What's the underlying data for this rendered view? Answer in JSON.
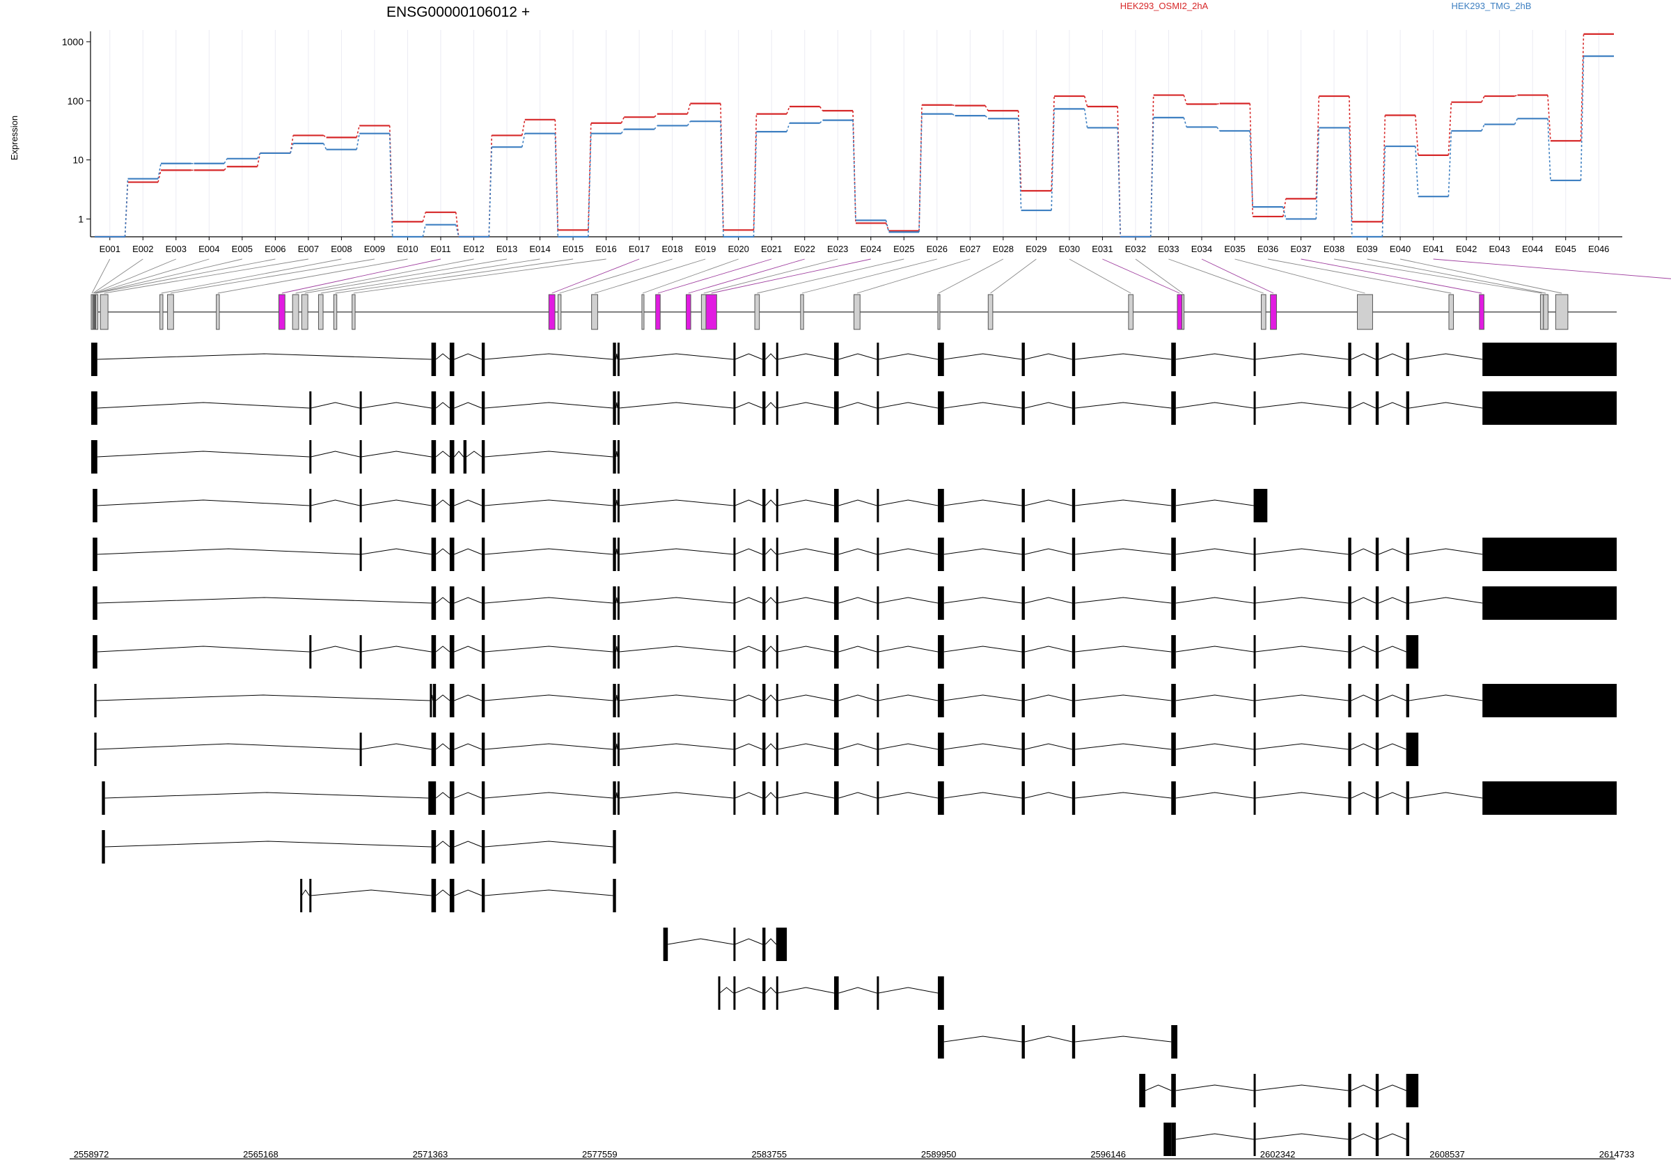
{
  "chart_data": {
    "type": "line",
    "title": "ENSG00000106012 +",
    "ylabel": "Expression",
    "yscale": "log",
    "ylim": [
      0.5,
      1500
    ],
    "yticks": [
      1,
      10,
      100,
      1000
    ],
    "grid": true,
    "legend_placement": "top-right",
    "categories": [
      "E001",
      "E002",
      "E003",
      "E004",
      "E005",
      "E006",
      "E007",
      "E008",
      "E009",
      "E010",
      "E011",
      "E012",
      "E013",
      "E014",
      "E015",
      "E016",
      "E017",
      "E018",
      "E019",
      "E020",
      "E021",
      "E022",
      "E023",
      "E024",
      "E025",
      "E026",
      "E027",
      "E028",
      "E029",
      "E030",
      "E031",
      "E032",
      "E033",
      "E034",
      "E035",
      "E036",
      "E037",
      "E038",
      "E039",
      "E040",
      "E041",
      "E042",
      "E043",
      "E044",
      "E045",
      "E046"
    ],
    "series": [
      {
        "name": "HEK293_OSMI2_2hA",
        "color": "#d62728",
        "values": [
          0.5,
          4.2,
          6.7,
          6.7,
          7.7,
          13,
          26,
          24,
          38,
          0.9,
          1.3,
          0.5,
          26,
          48,
          0.65,
          42,
          53,
          60,
          90,
          0.65,
          60,
          80,
          68,
          0.85,
          0.63,
          85,
          83,
          68,
          3,
          120,
          80,
          0.5,
          125,
          88,
          90,
          1.1,
          2.2,
          120,
          0.9,
          57,
          12,
          95,
          120,
          125,
          21,
          1350
        ]
      },
      {
        "name": "HEK293_TMG_2hB",
        "color": "#3d7fc1",
        "values": [
          0.5,
          4.8,
          8.7,
          8.7,
          10.5,
          13,
          19,
          15,
          28,
          0.5,
          0.8,
          0.5,
          16.5,
          28,
          0.5,
          28,
          33,
          38,
          45,
          0.5,
          30,
          42,
          47,
          0.95,
          0.6,
          60,
          56,
          50,
          1.4,
          73,
          35,
          0.5,
          52,
          36,
          31,
          1.6,
          1,
          35,
          0.5,
          17,
          2.4,
          31,
          40,
          50,
          4.5,
          570
        ]
      }
    ],
    "exon_highlight": [
      "E011",
      "E017",
      "E021",
      "E022",
      "E024",
      "E031",
      "E034",
      "E037",
      "E041",
      "E042",
      "E043",
      "E044"
    ],
    "genomic_ticks": [
      "2558972",
      "2565168",
      "2571363",
      "2577559",
      "2583755",
      "2589950",
      "2596146",
      "2602342",
      "2608537",
      "2614733"
    ],
    "gene_model_exons": [
      [
        "E001",
        0,
        0.1
      ],
      [
        "E002",
        0.1,
        0.15
      ],
      [
        "E003",
        0.15,
        0.2
      ],
      [
        "E004",
        0.2,
        0.25
      ],
      [
        "E005",
        0.25,
        0.3
      ],
      [
        "E006",
        0.3,
        0.35
      ],
      [
        "E007",
        0.6,
        1.1
      ],
      [
        "E008",
        4.5,
        4.7
      ],
      [
        "E009",
        5,
        5.4
      ],
      [
        "E010",
        8.2,
        8.4
      ],
      [
        "E011",
        12.3,
        12.7
      ],
      [
        "E012",
        13.2,
        13.6
      ],
      [
        "E013",
        13.8,
        14.2
      ],
      [
        "E014",
        14.9,
        15.2
      ],
      [
        "E015",
        15.9,
        16.1
      ],
      [
        "E016",
        17.1,
        17.3
      ],
      [
        "E017",
        30,
        30.4
      ],
      [
        "E018",
        30.6,
        30.8
      ],
      [
        "E019",
        32.8,
        33.2
      ],
      [
        "E020",
        36.1,
        36.2
      ],
      [
        "E021",
        37.0,
        37.3
      ],
      [
        "E022",
        39.0,
        39.3
      ],
      [
        "E023",
        40.0,
        40.3
      ],
      [
        "E024",
        40.3,
        41.0
      ],
      [
        "E025",
        43.5,
        43.8
      ],
      [
        "E026",
        46.5,
        46.7
      ],
      [
        "E027",
        50.0,
        50.4
      ],
      [
        "E028",
        55.5,
        55.6
      ],
      [
        "E029",
        58.8,
        59.1
      ],
      [
        "E030",
        68.0,
        68.3
      ],
      [
        "E031",
        71.2,
        71.5
      ],
      [
        "E032",
        71.5,
        71.6
      ],
      [
        "E033",
        76.7,
        77.0
      ],
      [
        "E034",
        77.3,
        77.7
      ],
      [
        "E035",
        83,
        84
      ],
      [
        "E036",
        89,
        89.3
      ],
      [
        "E037",
        91,
        91.3
      ],
      [
        "E038",
        95,
        95.2
      ],
      [
        "E039",
        95.2,
        95.5
      ],
      [
        "E040",
        96,
        96.8
      ],
      [
        "E041",
        110,
        120
      ]
    ],
    "transcripts": [
      [
        [
          0,
          0.4
        ],
        [
          22.3,
          22.6
        ],
        [
          23.5,
          23.8
        ],
        [
          25.6,
          25.8
        ],
        [
          34.2,
          34.4
        ],
        [
          34.5,
          34.6
        ],
        [
          42.1,
          42.2
        ],
        [
          44,
          44.2
        ],
        [
          44.9,
          45
        ],
        [
          48.7,
          49
        ],
        [
          51.5,
          51.6
        ],
        [
          55.5,
          55.9
        ],
        [
          61,
          61.2
        ],
        [
          64.3,
          64.5
        ],
        [
          70.8,
          71.1
        ],
        [
          76.2,
          76.3
        ],
        [
          82.4,
          82.6
        ],
        [
          84.2,
          84.4
        ],
        [
          86.2,
          86.4
        ],
        [
          91.2,
          100
        ]
      ],
      [
        [
          0,
          0.4
        ],
        [
          14.3,
          14.4
        ],
        [
          17.6,
          17.7
        ],
        [
          22.3,
          22.6
        ],
        [
          23.5,
          23.8
        ],
        [
          25.6,
          25.8
        ],
        [
          34.2,
          34.4
        ],
        [
          34.5,
          34.6
        ],
        [
          42.1,
          42.2
        ],
        [
          44,
          44.2
        ],
        [
          44.9,
          45
        ],
        [
          48.7,
          49
        ],
        [
          51.5,
          51.6
        ],
        [
          55.5,
          55.9
        ],
        [
          61,
          61.2
        ],
        [
          64.3,
          64.5
        ],
        [
          70.8,
          71.1
        ],
        [
          76.2,
          76.3
        ],
        [
          82.4,
          82.6
        ],
        [
          84.2,
          84.4
        ],
        [
          86.2,
          86.4
        ],
        [
          91.2,
          100
        ]
      ],
      [
        [
          0,
          0.4
        ],
        [
          14.3,
          14.4
        ],
        [
          17.6,
          17.7
        ],
        [
          22.3,
          22.6
        ],
        [
          23.5,
          23.8
        ],
        [
          24.4,
          24.6
        ],
        [
          25.6,
          25.8
        ],
        [
          34.2,
          34.4
        ],
        [
          34.5,
          34.6
        ]
      ],
      [
        [
          0.1,
          0.4
        ],
        [
          14.3,
          14.4
        ],
        [
          17.6,
          17.7
        ],
        [
          22.3,
          22.6
        ],
        [
          23.5,
          23.8
        ],
        [
          25.6,
          25.8
        ],
        [
          34.2,
          34.4
        ],
        [
          34.5,
          34.6
        ],
        [
          42.1,
          42.2
        ],
        [
          44,
          44.2
        ],
        [
          44.9,
          45
        ],
        [
          48.7,
          49
        ],
        [
          51.5,
          51.6
        ],
        [
          55.5,
          55.9
        ],
        [
          61,
          61.2
        ],
        [
          64.3,
          64.5
        ],
        [
          70.8,
          71.1
        ],
        [
          76.2,
          77.1
        ]
      ],
      [
        [
          0.1,
          0.4
        ],
        [
          17.6,
          17.7
        ],
        [
          22.3,
          22.6
        ],
        [
          23.5,
          23.8
        ],
        [
          25.6,
          25.8
        ],
        [
          34.2,
          34.4
        ],
        [
          34.5,
          34.6
        ],
        [
          42.1,
          42.2
        ],
        [
          44,
          44.2
        ],
        [
          44.9,
          45
        ],
        [
          48.7,
          49
        ],
        [
          51.5,
          51.6
        ],
        [
          55.5,
          55.9
        ],
        [
          61,
          61.2
        ],
        [
          64.3,
          64.5
        ],
        [
          70.8,
          71.1
        ],
        [
          76.2,
          76.3
        ],
        [
          82.4,
          82.6
        ],
        [
          84.2,
          84.4
        ],
        [
          86.2,
          86.4
        ],
        [
          91.2,
          100
        ]
      ],
      [
        [
          0.1,
          0.4
        ],
        [
          22.3,
          22.6
        ],
        [
          23.5,
          23.8
        ],
        [
          25.6,
          25.8
        ],
        [
          34.2,
          34.4
        ],
        [
          34.5,
          34.6
        ],
        [
          42.1,
          42.2
        ],
        [
          44,
          44.2
        ],
        [
          44.9,
          45
        ],
        [
          48.7,
          49
        ],
        [
          51.5,
          51.6
        ],
        [
          55.5,
          55.9
        ],
        [
          61,
          61.2
        ],
        [
          64.3,
          64.5
        ],
        [
          70.8,
          71.1
        ],
        [
          76.2,
          76.3
        ],
        [
          82.4,
          82.6
        ],
        [
          84.2,
          84.4
        ],
        [
          86.2,
          86.4
        ],
        [
          91.2,
          100
        ]
      ],
      [
        [
          0.1,
          0.4
        ],
        [
          14.3,
          14.4
        ],
        [
          17.6,
          17.7
        ],
        [
          22.3,
          22.6
        ],
        [
          23.5,
          23.8
        ],
        [
          25.6,
          25.8
        ],
        [
          34.2,
          34.4
        ],
        [
          34.5,
          34.6
        ],
        [
          42.1,
          42.2
        ],
        [
          44,
          44.2
        ],
        [
          44.9,
          45
        ],
        [
          48.7,
          49
        ],
        [
          51.5,
          51.6
        ],
        [
          55.5,
          55.9
        ],
        [
          61,
          61.2
        ],
        [
          64.3,
          64.5
        ],
        [
          70.8,
          71.1
        ],
        [
          76.2,
          76.3
        ],
        [
          82.4,
          82.6
        ],
        [
          84.2,
          84.4
        ],
        [
          86.2,
          87
        ]
      ],
      [
        [
          0.2,
          0.35
        ],
        [
          22.2,
          22.3
        ],
        [
          22.4,
          22.6
        ],
        [
          23.5,
          23.8
        ],
        [
          25.6,
          25.8
        ],
        [
          34.2,
          34.4
        ],
        [
          34.5,
          34.6
        ],
        [
          42.1,
          42.2
        ],
        [
          44,
          44.2
        ],
        [
          44.9,
          45
        ],
        [
          48.7,
          49
        ],
        [
          51.5,
          51.6
        ],
        [
          55.5,
          55.9
        ],
        [
          61,
          61.2
        ],
        [
          64.3,
          64.5
        ],
        [
          70.8,
          71.1
        ],
        [
          76.2,
          76.3
        ],
        [
          82.4,
          82.6
        ],
        [
          84.2,
          84.4
        ],
        [
          86.2,
          86.4
        ],
        [
          91.2,
          100
        ]
      ],
      [
        [
          0.2,
          0.35
        ],
        [
          17.6,
          17.7
        ],
        [
          22.3,
          22.6
        ],
        [
          23.5,
          23.8
        ],
        [
          25.6,
          25.8
        ],
        [
          34.2,
          34.4
        ],
        [
          34.5,
          34.6
        ],
        [
          42.1,
          42.2
        ],
        [
          44,
          44.2
        ],
        [
          44.9,
          45
        ],
        [
          48.7,
          49
        ],
        [
          51.5,
          51.6
        ],
        [
          55.5,
          55.9
        ],
        [
          61,
          61.2
        ],
        [
          64.3,
          64.5
        ],
        [
          70.8,
          71.1
        ],
        [
          76.2,
          76.3
        ],
        [
          82.4,
          82.6
        ],
        [
          84.2,
          84.4
        ],
        [
          86.2,
          87
        ]
      ],
      [
        [
          0.7,
          0.9
        ],
        [
          22.1,
          22.6
        ],
        [
          23.5,
          23.8
        ],
        [
          25.6,
          25.8
        ],
        [
          34.2,
          34.4
        ],
        [
          34.5,
          34.6
        ],
        [
          42.1,
          42.2
        ],
        [
          44,
          44.2
        ],
        [
          44.9,
          45
        ],
        [
          48.7,
          49
        ],
        [
          51.5,
          51.6
        ],
        [
          55.5,
          55.9
        ],
        [
          61,
          61.2
        ],
        [
          64.3,
          64.5
        ],
        [
          70.8,
          71.1
        ],
        [
          76.2,
          76.3
        ],
        [
          82.4,
          82.6
        ],
        [
          84.2,
          84.4
        ],
        [
          86.2,
          86.4
        ],
        [
          91.2,
          100
        ]
      ],
      [
        [
          0.7,
          0.9
        ],
        [
          22.3,
          22.6
        ],
        [
          23.5,
          23.8
        ],
        [
          25.6,
          25.8
        ],
        [
          34.2,
          34.4
        ]
      ],
      [
        [
          13.7,
          13.8
        ],
        [
          14.3,
          14.4
        ],
        [
          22.3,
          22.6
        ],
        [
          23.5,
          23.8
        ],
        [
          25.6,
          25.8
        ],
        [
          34.2,
          34.4
        ]
      ],
      [
        [
          37.5,
          37.8
        ],
        [
          42.1,
          42.2
        ],
        [
          44,
          44.2
        ],
        [
          44.9,
          45.6
        ]
      ],
      [
        [
          41.1,
          41.2
        ],
        [
          42.1,
          42.2
        ],
        [
          44,
          44.2
        ],
        [
          44.9,
          45
        ],
        [
          48.7,
          49
        ],
        [
          51.5,
          51.6
        ],
        [
          55.5,
          55.9
        ]
      ],
      [
        [
          55.5,
          55.9
        ],
        [
          61,
          61.2
        ],
        [
          64.3,
          64.5
        ],
        [
          70.8,
          71.2
        ]
      ],
      [
        [
          68.7,
          69.1
        ],
        [
          70.8,
          71.1
        ],
        [
          76.2,
          76.3
        ],
        [
          82.4,
          82.6
        ],
        [
          84.2,
          84.4
        ],
        [
          86.2,
          87
        ]
      ],
      [
        [
          70.3,
          70.8
        ],
        [
          70.8,
          71.1
        ],
        [
          76.2,
          76.3
        ],
        [
          82.4,
          82.6
        ],
        [
          84.2,
          84.4
        ],
        [
          86.2,
          86.4
        ]
      ]
    ]
  }
}
